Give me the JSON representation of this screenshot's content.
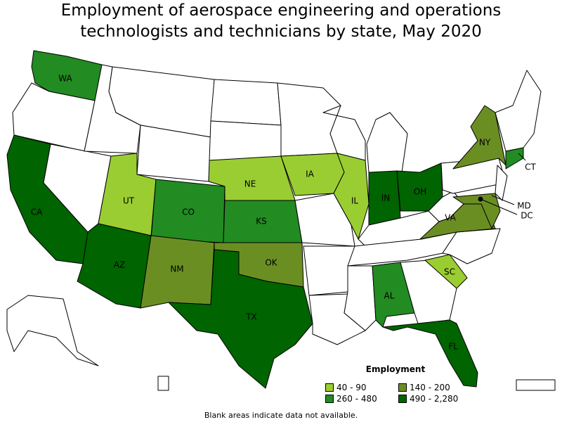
{
  "title": "Employment of aerospace engineering and operations technologists and technicians by state, May 2020",
  "legend": {
    "title": "Employment",
    "items": [
      {
        "label": "40 - 90",
        "color": "#9acd32"
      },
      {
        "label": "140 - 200",
        "color": "#6b8e23"
      },
      {
        "label": "260 - 480",
        "color": "#228b22"
      },
      {
        "label": "490 - 2,280",
        "color": "#006400"
      }
    ]
  },
  "note": "Blank areas indicate data not available.",
  "states": [
    {
      "abbr": "WA",
      "range": 2
    },
    {
      "abbr": "CA",
      "range": 3
    },
    {
      "abbr": "UT",
      "range": 0
    },
    {
      "abbr": "CO",
      "range": 2
    },
    {
      "abbr": "AZ",
      "range": 3
    },
    {
      "abbr": "NM",
      "range": 1
    },
    {
      "abbr": "NE",
      "range": 0
    },
    {
      "abbr": "KS",
      "range": 2
    },
    {
      "abbr": "OK",
      "range": 1
    },
    {
      "abbr": "TX",
      "range": 3
    },
    {
      "abbr": "IA",
      "range": 0
    },
    {
      "abbr": "IL",
      "range": 0
    },
    {
      "abbr": "IN",
      "range": 3
    },
    {
      "abbr": "OH",
      "range": 3
    },
    {
      "abbr": "AL",
      "range": 2
    },
    {
      "abbr": "SC",
      "range": 0
    },
    {
      "abbr": "FL",
      "range": 3
    },
    {
      "abbr": "VA",
      "range": 1
    },
    {
      "abbr": "NY",
      "range": 1
    },
    {
      "abbr": "CT",
      "range": 2
    },
    {
      "abbr": "MD",
      "range": 1
    },
    {
      "abbr": "DC",
      "range": 3
    }
  ]
}
